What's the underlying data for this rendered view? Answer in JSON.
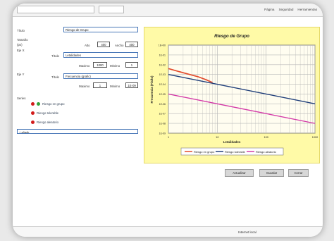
{
  "browser": {
    "menu": [
      "Página",
      "Seguridad",
      "Herramientas"
    ]
  },
  "form": {
    "title_label": "Título",
    "title_value": "Riesgo de Grupo",
    "size_label": "Tamaño",
    "size_unit": "(px)",
    "width_label": "Alto",
    "width_value": "400",
    "height_label": "Ancho",
    "height_value": "400",
    "x_axis_label": "Eje X",
    "x_title_label": "Título",
    "x_title_value": "Letalidades",
    "x_max_label": "Maximo",
    "x_max_value": "1000",
    "x_min_label": "Minimo",
    "x_min_value": "1",
    "y_axis_label": "Eje Y",
    "y_title_label": "Título",
    "y_title_value": "Frecuencia (grafic)",
    "y_max_label": "Maximo",
    "y_max_value": "1",
    "y_min_label": "Minimo",
    "y_min_value": "1E-09",
    "series_label": "Series",
    "series": [
      {
        "label": "Riesgo en grupo",
        "color": "#d21a1a"
      },
      {
        "label": "Riesgo tolerable",
        "color": "#d21a1a"
      },
      {
        "label": "Riesgo aleatorio",
        "color": "#d21a1a"
      }
    ],
    "editor_text": "+ añadir"
  },
  "chart_data": {
    "type": "line",
    "title": "Riesgo de Grupo",
    "xlabel": "Letalidades",
    "ylabel": "Frecuencia (F/año)",
    "x_scale": "log",
    "y_scale": "log",
    "xlim": [
      1,
      1000
    ],
    "ylim": [
      1e-09,
      1
    ],
    "x_tick_labels": [
      "1",
      "10",
      "100",
      "1000"
    ],
    "y_tick_labels": [
      "1E+00",
      "1E-01",
      "1E-02",
      "1E-03",
      "1E-04",
      "1E-05",
      "1E-06",
      "1E-07",
      "1E-08",
      "1E-09"
    ],
    "grid": true,
    "legend_position": "bottom",
    "series": [
      {
        "name": "Riesgo en grupo",
        "color": "#e24a2b",
        "x": [
          1,
          2,
          4,
          6,
          8
        ],
        "y": [
          0.004,
          0.0015,
          0.0006,
          0.00028,
          0.00015
        ]
      },
      {
        "name": "Riesgo tolerable",
        "color": "#203f7a",
        "x": [
          1,
          10,
          100,
          1000
        ],
        "y": [
          0.001,
          0.0001,
          1e-05,
          1e-06
        ]
      },
      {
        "name": "Riesgo aleatorio",
        "color": "#d43aa8",
        "x": [
          1,
          10,
          100,
          1000
        ],
        "y": [
          1e-05,
          1e-06,
          1e-07,
          1e-08
        ]
      }
    ]
  },
  "buttons": {
    "apply": "Actualizar",
    "save": "Guardar",
    "cancel": "Cerrar"
  },
  "status": {
    "text": "Internet local"
  }
}
